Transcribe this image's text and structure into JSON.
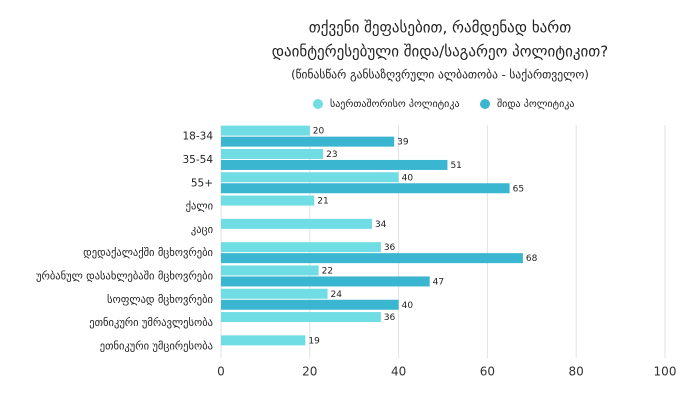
{
  "chart_data": {
    "type": "bar",
    "orientation": "horizontal",
    "title": [
      "თქვენი შეფასებით, რამდენად ხართ",
      "დაინტერესებული შიდა/საგარეო პოლიტიკით?"
    ],
    "subtitle": "(წინასწარ განსაზღვრული ალბათობა - საქართველო)",
    "categories": [
      "18-34",
      "35-54",
      "55+",
      "ქალი",
      "კაცი",
      "დედაქალაქში მცხოვრები",
      "ურბანულ დასახლებაში მცხოვრები",
      "სოფლად მცხოვრები",
      "ეთნიკური უმრავლესობა",
      "ეთნიკური უმცირესობა"
    ],
    "series": [
      {
        "name": "საერთაშორისო პოლიტიკა",
        "color": "#6fdde3",
        "values": [
          20,
          23,
          40,
          21,
          34,
          36,
          22,
          24,
          36,
          19
        ]
      },
      {
        "name": "შიდა პოლიტიკა",
        "color": "#3bb6d0",
        "values": [
          39,
          51,
          65,
          null,
          null,
          68,
          47,
          40,
          null,
          null
        ]
      }
    ],
    "xlim": [
      0,
      100
    ],
    "xticks": [
      0,
      20,
      40,
      60,
      80,
      100
    ],
    "grid": true,
    "legend": "top"
  }
}
